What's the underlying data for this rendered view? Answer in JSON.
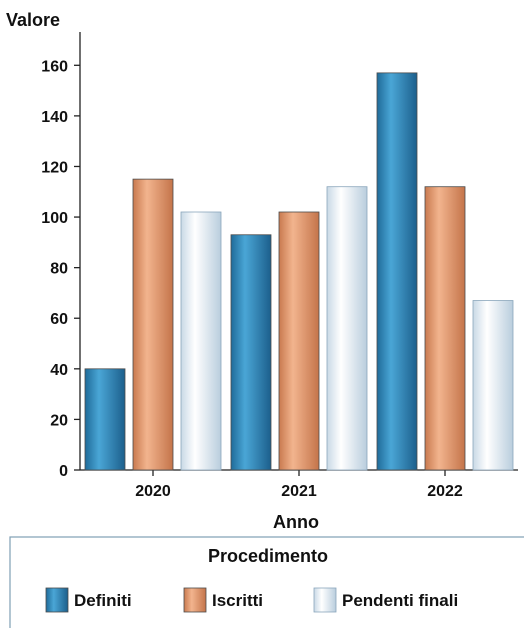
{
  "chart_data": {
    "type": "bar",
    "ylabel": "Valore",
    "xlabel": "Anno",
    "categories": [
      "2020",
      "2021",
      "2022"
    ],
    "ylim": [
      0,
      170
    ],
    "yticks": [
      0,
      20,
      40,
      60,
      80,
      100,
      120,
      140,
      160
    ],
    "grid": false,
    "legend": {
      "title": "Procedimento",
      "position": "bottom"
    },
    "series": [
      {
        "name": "Definiti",
        "values": [
          40,
          93,
          157
        ],
        "color": "#2f86b8"
      },
      {
        "name": "Iscritti",
        "values": [
          115,
          102,
          112
        ],
        "color": "#e39a70"
      },
      {
        "name": "Pendenti finali",
        "values": [
          102,
          112,
          67
        ],
        "color": "#e9f1f7"
      }
    ]
  }
}
